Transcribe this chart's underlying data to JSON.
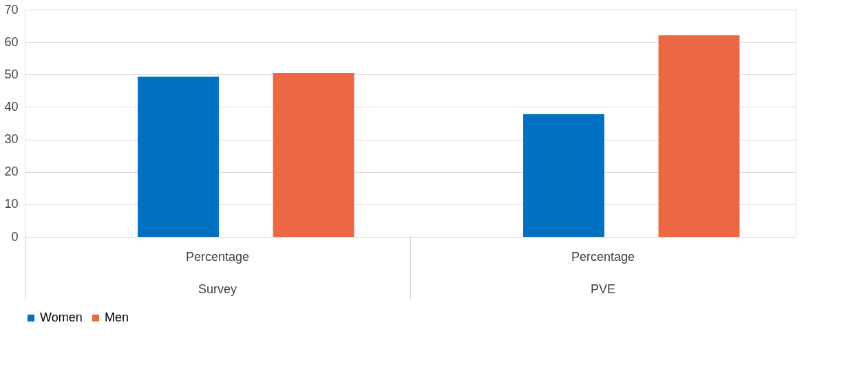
{
  "chart_data": {
    "type": "bar",
    "categories": [
      "Percentage",
      "Percentage"
    ],
    "annotations": [
      "Survey",
      "PVE"
    ],
    "series": [
      {
        "name": "Women",
        "color": "#0070c0",
        "values": [
          49.3,
          37.8
        ]
      },
      {
        "name": "Men",
        "color": "#ec6845",
        "values": [
          50.5,
          62.1
        ]
      }
    ],
    "ylim": [
      0,
      70
    ],
    "yticks": [
      0,
      10,
      20,
      30,
      40,
      50,
      60,
      70
    ],
    "grid": "y",
    "legend": "bottom"
  }
}
